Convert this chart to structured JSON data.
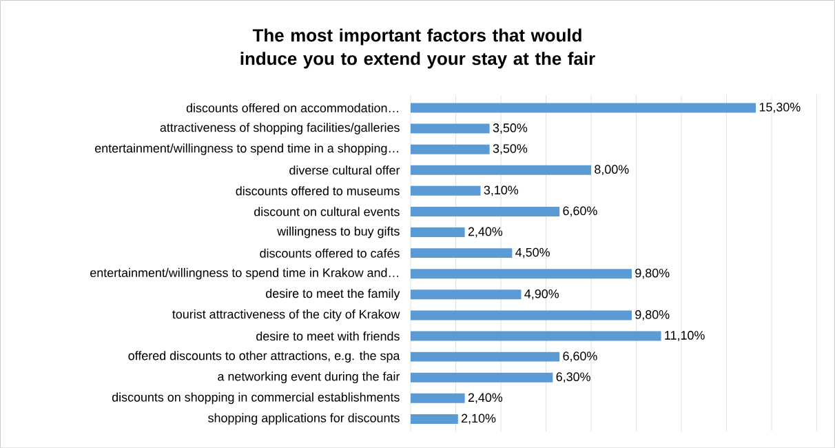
{
  "chart_data": {
    "type": "bar",
    "orientation": "horizontal",
    "title": "The most important factors that would induce you to extend your stay at the fair",
    "categories": [
      "discounts offered on accommodation…",
      "attractiveness of shopping facilities/galleries",
      "entertainment/willingness to spend time in a shopping…",
      "diverse cultural offer",
      "discounts offered to museums",
      "discount on cultural events",
      "willingness to buy gifts",
      "discounts offered to cafés",
      "entertainment/willingness to spend time in Krakow and…",
      "desire to meet the family",
      "tourist attractiveness of the city of Krakow",
      "desire to meet with friends",
      "offered discounts to other attractions, e.g. the spa",
      "a networking event during the fair",
      "discounts on shopping in commercial establishments",
      "shopping applications for discounts"
    ],
    "values": [
      15.3,
      3.5,
      3.5,
      8.0,
      3.1,
      6.6,
      2.4,
      4.5,
      9.8,
      4.9,
      9.8,
      11.1,
      6.6,
      6.3,
      2.4,
      2.1
    ],
    "value_labels": [
      "15,30%",
      "3,50%",
      "3,50%",
      "8,00%",
      "3,10%",
      "6,60%",
      "2,40%",
      "4,50%",
      "9,80%",
      "4,90%",
      "9,80%",
      "11,10%",
      "6,60%",
      "6,30%",
      "2,40%",
      "2,10%"
    ],
    "color": "#5b9bd5",
    "xlim": [
      0,
      18
    ],
    "xticks": [
      {
        "value": 0,
        "label": null
      },
      {
        "value": 2,
        "label": null
      },
      {
        "value": 4,
        "label": null
      },
      {
        "value": 6,
        "label": null
      },
      {
        "value": 8,
        "label": null
      },
      {
        "value": 10,
        "label": null
      },
      {
        "value": 12,
        "label": null
      },
      {
        "value": 14,
        "label": null
      },
      {
        "value": 16,
        "label": null
      },
      {
        "value": 18,
        "label": null
      }
    ],
    "grid": "x",
    "tick_labels": "y"
  }
}
